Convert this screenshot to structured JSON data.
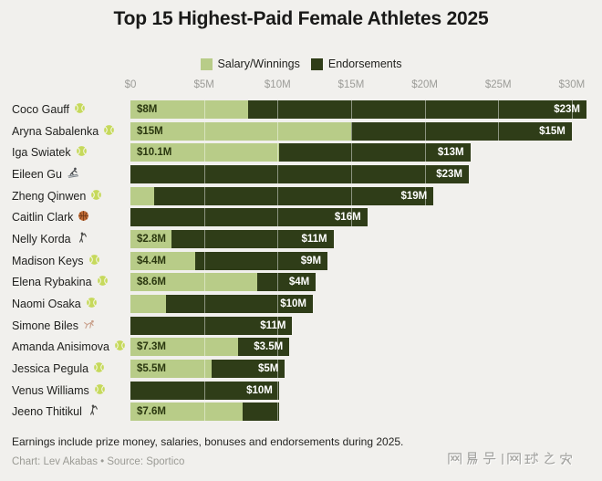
{
  "title": "Top 15 Highest-Paid Female Athletes 2025",
  "legend": [
    {
      "label": "Salary/Winnings",
      "color": "#b8cc88"
    },
    {
      "label": "Endorsements",
      "color": "#2f3d18"
    }
  ],
  "footer": {
    "note": "Earnings include prize money, salaries, bonuses and endorsements during 2025.",
    "credit": "Chart: Lev Akabas • Source: Sportico"
  },
  "watermark": "网易号 | 网球之家",
  "colors": {
    "background": "#f1f0ed",
    "salary": "#b8cc88",
    "endorsements": "#2f3d18",
    "axis_text": "#9c9c98",
    "title_text": "#191918"
  },
  "chart_data": {
    "type": "bar",
    "stacked": true,
    "orientation": "horizontal",
    "unit": "million USD",
    "xlim": [
      0,
      30
    ],
    "x_ticks": [
      "$0",
      "$5M",
      "$10M",
      "$15M",
      "$20M",
      "$25M",
      "$30M"
    ],
    "series_names": [
      "Salary/Winnings",
      "Endorsements"
    ],
    "rows": [
      {
        "name": "Coco Gauff",
        "sport": "tennis",
        "salary": 8,
        "salary_label": "$8M",
        "endorsements": 23,
        "endorsements_label": "$23M"
      },
      {
        "name": "Aryna Sabalenka",
        "sport": "tennis",
        "salary": 15,
        "salary_label": "$15M",
        "endorsements": 15,
        "endorsements_label": "$15M"
      },
      {
        "name": "Iga Swiatek",
        "sport": "tennis",
        "salary": 10.1,
        "salary_label": "$10.1M",
        "endorsements": 13,
        "endorsements_label": "$13M"
      },
      {
        "name": "Eileen Gu",
        "sport": "ski",
        "salary": 0,
        "salary_label": "",
        "endorsements": 23,
        "endorsements_label": "$23M"
      },
      {
        "name": "Zheng Qinwen",
        "sport": "tennis",
        "salary": 1.6,
        "salary_label": "",
        "endorsements": 19,
        "endorsements_label": "$19M"
      },
      {
        "name": "Caitlin Clark",
        "sport": "basketball",
        "salary": 0.1,
        "salary_label": "",
        "endorsements": 16,
        "endorsements_label": "$16M"
      },
      {
        "name": "Nelly Korda",
        "sport": "golf",
        "salary": 2.8,
        "salary_label": "$2.8M",
        "endorsements": 11,
        "endorsements_label": "$11M"
      },
      {
        "name": "Madison Keys",
        "sport": "tennis",
        "salary": 4.4,
        "salary_label": "$4.4M",
        "endorsements": 9,
        "endorsements_label": "$9M"
      },
      {
        "name": "Elena Rybakina",
        "sport": "tennis",
        "salary": 8.6,
        "salary_label": "$8.6M",
        "endorsements": 4,
        "endorsements_label": "$4M"
      },
      {
        "name": "Naomi Osaka",
        "sport": "tennis",
        "salary": 2.4,
        "salary_label": "",
        "endorsements": 10,
        "endorsements_label": "$10M"
      },
      {
        "name": "Simone Biles",
        "sport": "gymnastics",
        "salary": 0,
        "salary_label": "",
        "endorsements": 11,
        "endorsements_label": "$11M"
      },
      {
        "name": "Amanda Anisimova",
        "sport": "tennis",
        "salary": 7.3,
        "salary_label": "$7.3M",
        "endorsements": 3.5,
        "endorsements_label": "$3.5M"
      },
      {
        "name": "Jessica Pegula",
        "sport": "tennis",
        "salary": 5.5,
        "salary_label": "$5.5M",
        "endorsements": 5,
        "endorsements_label": "$5M"
      },
      {
        "name": "Venus Williams",
        "sport": "tennis",
        "salary": 0.1,
        "salary_label": "",
        "endorsements": 10,
        "endorsements_label": "$10M"
      },
      {
        "name": "Jeeno Thitikul",
        "sport": "golf",
        "salary": 7.6,
        "salary_label": "$7.6M",
        "endorsements": 2.5,
        "endorsements_label": ""
      }
    ]
  }
}
